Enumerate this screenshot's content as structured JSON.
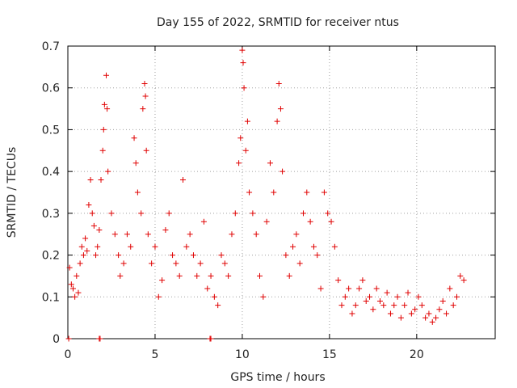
{
  "chart_data": {
    "type": "scatter",
    "title": "Day 155 of 2022, SRMTID for receiver ntus",
    "xlabel": "GPS time / hours",
    "ylabel": "SRMTID / TECUs",
    "xlim": [
      0,
      24.5
    ],
    "ylim": [
      0,
      0.7
    ],
    "xticks": [
      0,
      5,
      10,
      15,
      20
    ],
    "yticks": [
      0,
      0.1,
      0.2,
      0.3,
      0.4,
      0.5,
      0.6,
      0.7
    ],
    "grid": true,
    "marker": "+",
    "color": "#e00000",
    "series": [
      {
        "name": "SRMTID",
        "points": [
          [
            0.05,
            0.0
          ],
          [
            1.8,
            0.0
          ],
          [
            1.85,
            0.0
          ],
          [
            8.15,
            0.0
          ],
          [
            8.2,
            0.0
          ],
          [
            0.1,
            0.17
          ],
          [
            0.2,
            0.13
          ],
          [
            0.3,
            0.12
          ],
          [
            0.4,
            0.1
          ],
          [
            0.5,
            0.15
          ],
          [
            0.6,
            0.11
          ],
          [
            0.7,
            0.18
          ],
          [
            0.8,
            0.22
          ],
          [
            0.9,
            0.2
          ],
          [
            1.0,
            0.24
          ],
          [
            1.1,
            0.21
          ],
          [
            1.2,
            0.32
          ],
          [
            1.3,
            0.38
          ],
          [
            1.4,
            0.3
          ],
          [
            1.5,
            0.27
          ],
          [
            1.6,
            0.2
          ],
          [
            1.7,
            0.22
          ],
          [
            1.8,
            0.26
          ],
          [
            1.9,
            0.38
          ],
          [
            2.0,
            0.45
          ],
          [
            2.05,
            0.5
          ],
          [
            2.1,
            0.56
          ],
          [
            2.2,
            0.63
          ],
          [
            2.25,
            0.55
          ],
          [
            2.3,
            0.4
          ],
          [
            2.5,
            0.3
          ],
          [
            2.7,
            0.25
          ],
          [
            2.9,
            0.2
          ],
          [
            3.0,
            0.15
          ],
          [
            3.2,
            0.18
          ],
          [
            3.4,
            0.25
          ],
          [
            3.6,
            0.22
          ],
          [
            3.8,
            0.48
          ],
          [
            3.9,
            0.42
          ],
          [
            4.0,
            0.35
          ],
          [
            4.2,
            0.3
          ],
          [
            4.3,
            0.55
          ],
          [
            4.4,
            0.61
          ],
          [
            4.45,
            0.58
          ],
          [
            4.5,
            0.45
          ],
          [
            4.6,
            0.25
          ],
          [
            4.8,
            0.18
          ],
          [
            5.0,
            0.22
          ],
          [
            5.2,
            0.1
          ],
          [
            5.4,
            0.14
          ],
          [
            5.6,
            0.26
          ],
          [
            5.8,
            0.3
          ],
          [
            6.0,
            0.2
          ],
          [
            6.2,
            0.18
          ],
          [
            6.4,
            0.15
          ],
          [
            6.6,
            0.38
          ],
          [
            6.8,
            0.22
          ],
          [
            7.0,
            0.25
          ],
          [
            7.2,
            0.2
          ],
          [
            7.4,
            0.15
          ],
          [
            7.6,
            0.18
          ],
          [
            7.8,
            0.28
          ],
          [
            8.0,
            0.12
          ],
          [
            8.2,
            0.15
          ],
          [
            8.4,
            0.1
          ],
          [
            8.6,
            0.08
          ],
          [
            8.8,
            0.2
          ],
          [
            9.0,
            0.18
          ],
          [
            9.2,
            0.15
          ],
          [
            9.4,
            0.25
          ],
          [
            9.6,
            0.3
          ],
          [
            9.8,
            0.42
          ],
          [
            9.9,
            0.48
          ],
          [
            10.0,
            0.69
          ],
          [
            10.05,
            0.66
          ],
          [
            10.1,
            0.6
          ],
          [
            10.2,
            0.45
          ],
          [
            10.3,
            0.52
          ],
          [
            10.4,
            0.35
          ],
          [
            10.6,
            0.3
          ],
          [
            10.8,
            0.25
          ],
          [
            11.0,
            0.15
          ],
          [
            11.2,
            0.1
          ],
          [
            11.4,
            0.28
          ],
          [
            11.6,
            0.42
          ],
          [
            11.8,
            0.35
          ],
          [
            12.0,
            0.52
          ],
          [
            12.1,
            0.61
          ],
          [
            12.2,
            0.55
          ],
          [
            12.3,
            0.4
          ],
          [
            12.5,
            0.2
          ],
          [
            12.7,
            0.15
          ],
          [
            12.9,
            0.22
          ],
          [
            13.1,
            0.25
          ],
          [
            13.3,
            0.18
          ],
          [
            13.5,
            0.3
          ],
          [
            13.7,
            0.35
          ],
          [
            13.9,
            0.28
          ],
          [
            14.1,
            0.22
          ],
          [
            14.3,
            0.2
          ],
          [
            14.5,
            0.12
          ],
          [
            14.7,
            0.35
          ],
          [
            14.9,
            0.3
          ],
          [
            15.1,
            0.28
          ],
          [
            15.3,
            0.22
          ],
          [
            15.5,
            0.14
          ],
          [
            15.7,
            0.08
          ],
          [
            15.9,
            0.1
          ],
          [
            16.1,
            0.12
          ],
          [
            16.3,
            0.06
          ],
          [
            16.5,
            0.08
          ],
          [
            16.7,
            0.12
          ],
          [
            16.9,
            0.14
          ],
          [
            17.1,
            0.09
          ],
          [
            17.3,
            0.1
          ],
          [
            17.5,
            0.07
          ],
          [
            17.7,
            0.12
          ],
          [
            17.9,
            0.09
          ],
          [
            18.1,
            0.08
          ],
          [
            18.3,
            0.11
          ],
          [
            18.5,
            0.06
          ],
          [
            18.7,
            0.08
          ],
          [
            18.9,
            0.1
          ],
          [
            19.1,
            0.05
          ],
          [
            19.3,
            0.08
          ],
          [
            19.5,
            0.11
          ],
          [
            19.7,
            0.06
          ],
          [
            19.9,
            0.07
          ],
          [
            20.1,
            0.1
          ],
          [
            20.3,
            0.08
          ],
          [
            20.5,
            0.05
          ],
          [
            20.7,
            0.06
          ],
          [
            20.9,
            0.04
          ],
          [
            21.1,
            0.05
          ],
          [
            21.3,
            0.07
          ],
          [
            21.5,
            0.09
          ],
          [
            21.7,
            0.06
          ],
          [
            21.9,
            0.12
          ],
          [
            22.1,
            0.08
          ],
          [
            22.3,
            0.1
          ],
          [
            22.5,
            0.15
          ],
          [
            22.7,
            0.14
          ]
        ]
      }
    ]
  }
}
